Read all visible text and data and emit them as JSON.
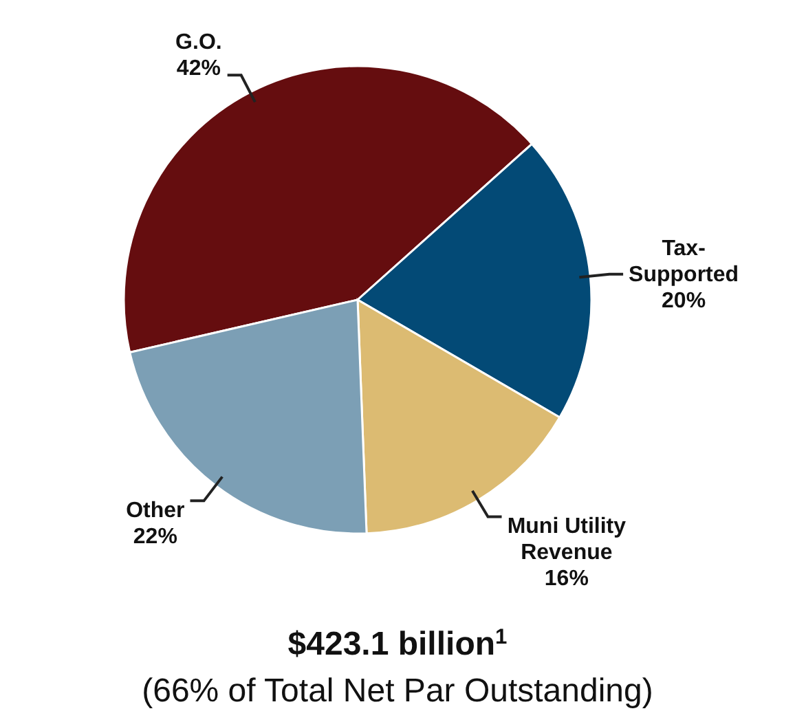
{
  "chart_data": {
    "type": "pie",
    "title": "$423.1 billion$^{1}$",
    "subtitle": "(66% of Total Net Par Outstanding)",
    "categories": [
      "G.O.",
      "Tax-Supported",
      "Muni Utility Revenue",
      "Other"
    ],
    "values": [
      42,
      20,
      16,
      22
    ],
    "value_labels": [
      "42%",
      "20%",
      "16%",
      "22%"
    ],
    "colors": [
      "#650d0f",
      "#034a76",
      "#dcbb72",
      "#7c9fb5"
    ]
  }
}
